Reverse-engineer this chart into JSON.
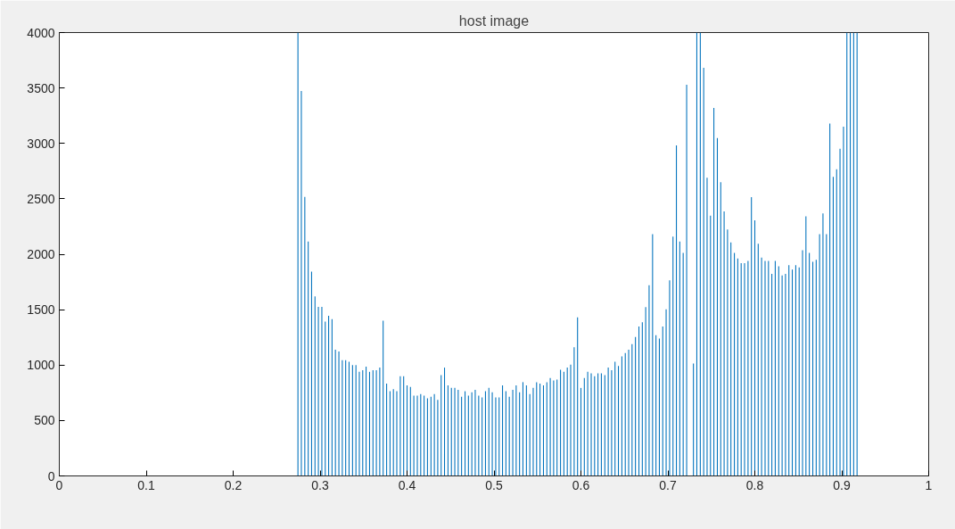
{
  "chart_data": {
    "type": "bar",
    "title": "host image",
    "x": [
      0.2745,
      0.2784,
      0.2824,
      0.2863,
      0.2902,
      0.2941,
      0.298,
      0.302,
      0.3059,
      0.3098,
      0.3137,
      0.3176,
      0.3216,
      0.3255,
      0.3294,
      0.3333,
      0.3373,
      0.3412,
      0.3451,
      0.349,
      0.3529,
      0.3569,
      0.3608,
      0.3647,
      0.3686,
      0.3725,
      0.3765,
      0.3804,
      0.3843,
      0.3882,
      0.3922,
      0.3961,
      0.4,
      0.4039,
      0.4078,
      0.4118,
      0.4157,
      0.4196,
      0.4235,
      0.4275,
      0.4314,
      0.4353,
      0.4392,
      0.4431,
      0.4471,
      0.451,
      0.4549,
      0.4588,
      0.4627,
      0.4667,
      0.4706,
      0.4745,
      0.4784,
      0.4824,
      0.4863,
      0.4902,
      0.4941,
      0.498,
      0.502,
      0.5059,
      0.5098,
      0.5137,
      0.5176,
      0.5216,
      0.5255,
      0.5294,
      0.5333,
      0.5373,
      0.5412,
      0.5451,
      0.549,
      0.5529,
      0.5569,
      0.5608,
      0.5647,
      0.5686,
      0.5725,
      0.5765,
      0.5804,
      0.5843,
      0.5882,
      0.5922,
      0.5961,
      0.6,
      0.6039,
      0.6078,
      0.6118,
      0.6157,
      0.6196,
      0.6235,
      0.6275,
      0.6314,
      0.6353,
      0.6392,
      0.6431,
      0.6471,
      0.651,
      0.6549,
      0.6588,
      0.6627,
      0.6667,
      0.6706,
      0.6745,
      0.6784,
      0.6824,
      0.6863,
      0.6902,
      0.6941,
      0.698,
      0.702,
      0.7059,
      0.7098,
      0.7137,
      0.7176,
      0.7216,
      0.7255,
      0.7294,
      0.7333,
      0.7373,
      0.7412,
      0.7451,
      0.749,
      0.7529,
      0.7569,
      0.7608,
      0.7647,
      0.7686,
      0.7725,
      0.7765,
      0.7804,
      0.7843,
      0.7882,
      0.7922,
      0.7961,
      0.8,
      0.8039,
      0.8078,
      0.8118,
      0.8157,
      0.8196,
      0.8235,
      0.8275,
      0.8314,
      0.8353,
      0.8392,
      0.8431,
      0.8471,
      0.851,
      0.8549,
      0.8588,
      0.8627,
      0.8667,
      0.8706,
      0.8745,
      0.8784,
      0.8824,
      0.8863,
      0.8902,
      0.8941,
      0.898,
      0.902,
      0.9059,
      0.9098,
      0.9137,
      0.9176
    ],
    "values": [
      4000,
      3472,
      2518,
      2115,
      1844,
      1619,
      1526,
      1526,
      1392,
      1444,
      1415,
      1138,
      1123,
      1044,
      1044,
      1030,
      1001,
      1001,
      939,
      954,
      986,
      939,
      954,
      954,
      977,
      1400,
      832,
      764,
      782,
      764,
      899,
      899,
      817,
      802,
      724,
      724,
      738,
      724,
      700,
      715,
      738,
      686,
      910,
      977,
      817,
      794,
      794,
      776,
      715,
      764,
      724,
      755,
      776,
      724,
      709,
      764,
      794,
      755,
      709,
      709,
      817,
      764,
      715,
      776,
      817,
      755,
      846,
      817,
      738,
      794,
      846,
      832,
      817,
      846,
      884,
      861,
      869,
      957,
      939,
      977,
      1004,
      1161,
      1430,
      794,
      884,
      939,
      925,
      899,
      925,
      925,
      910,
      977,
      954,
      1030,
      992,
      1079,
      1109,
      1138,
      1190,
      1254,
      1348,
      1386,
      1523,
      1721,
      2182,
      1269,
      1240,
      1348,
      1503,
      1765,
      2159,
      2982,
      2115,
      2013,
      3530,
      0,
      1015,
      4000,
      4000,
      3682,
      2690,
      2349,
      3320,
      3049,
      2649,
      2387,
      2223,
      2107,
      2013,
      1961,
      1920,
      1920,
      1940,
      2515,
      2305,
      2095,
      1969,
      1940,
      1940,
      1823,
      1940,
      1891,
      1809,
      1823,
      1902,
      1862,
      1902,
      1882,
      2037,
      2343,
      2013,
      1932,
      1949,
      2182,
      2369,
      2182,
      3180,
      2699,
      2766,
      2952,
      3151,
      4000,
      4000,
      4000,
      4000
    ],
    "color": "#0072bd",
    "xlim": [
      0,
      1
    ],
    "xticks": [
      0,
      0.1,
      0.2,
      0.3,
      0.4,
      0.5,
      0.6,
      0.7,
      0.8,
      0.9,
      1
    ],
    "ylim": [
      0,
      4000
    ],
    "yticks": [
      0,
      500,
      1000,
      1500,
      2000,
      2500,
      3000,
      3500,
      4000
    ],
    "grid": false
  }
}
